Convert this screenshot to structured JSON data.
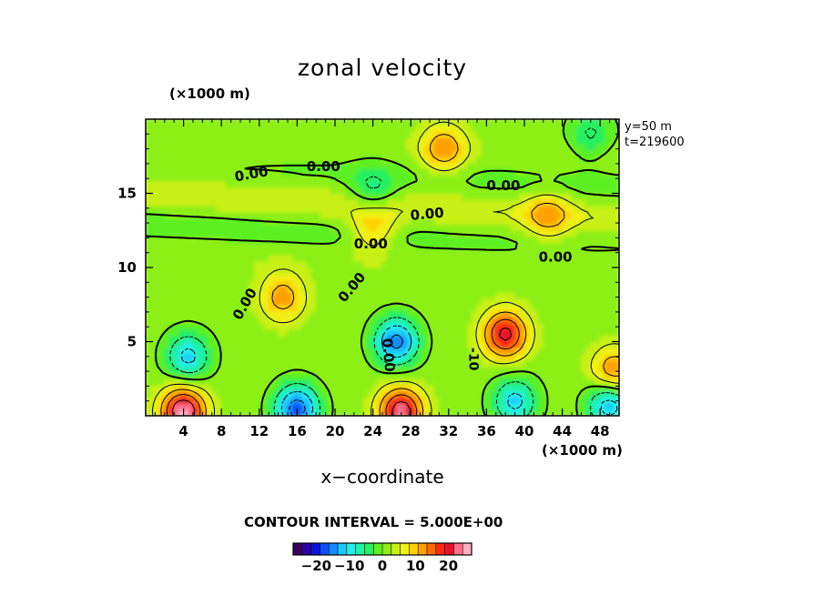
{
  "chart_data": {
    "type": "heatmap",
    "title": "zonal velocity",
    "xlabel": "x−coordinate",
    "x_scale_label": "(×1000 m)",
    "y_scale_label": "(×1000 m)",
    "info": [
      "y=50  m",
      "t=219600"
    ],
    "xlim": [
      0,
      50
    ],
    "ylim": [
      0,
      20
    ],
    "x_ticks": [
      4,
      8,
      12,
      16,
      20,
      24,
      28,
      32,
      36,
      40,
      44,
      48
    ],
    "x_tick_labels": [
      "4",
      "8",
      "12",
      "16",
      "20",
      "24",
      "28",
      "32",
      "36",
      "40",
      "44",
      "48"
    ],
    "y_ticks": [
      5,
      10,
      15
    ],
    "y_tick_labels": [
      "5",
      "10",
      "15"
    ],
    "contour_interval_text": "CONTOUR INTERVAL = 5.000E+00",
    "contour_label": "0.00",
    "contour_label_min": "-10",
    "colorbar": {
      "range": [
        -27,
        27
      ],
      "ticks": [
        -20,
        -10,
        0,
        10,
        20
      ],
      "tick_labels": [
        "−20",
        "−10",
        "0",
        "10",
        "20"
      ],
      "colors": [
        "#3a0060",
        "#2a00a0",
        "#0a14d8",
        "#0a50ff",
        "#148cff",
        "#1cc8ff",
        "#22f0e8",
        "#22f0a6",
        "#28f060",
        "#5cf020",
        "#8cf014",
        "#c8f014",
        "#f0f014",
        "#ffd000",
        "#ffa000",
        "#ff6a00",
        "#ff2a10",
        "#e8142a",
        "#ff6e8a",
        "#ffb0c0"
      ]
    },
    "features": [
      {
        "x": 26.5,
        "y": 5.0,
        "value": -18
      },
      {
        "x": 4.5,
        "y": 4.0,
        "value": -13
      },
      {
        "x": 38.0,
        "y": 5.5,
        "value": 20
      },
      {
        "x": 14.5,
        "y": 8.0,
        "value": 11
      },
      {
        "x": 4.0,
        "y": 0.3,
        "value": 24
      },
      {
        "x": 27.0,
        "y": 0.3,
        "value": 22
      },
      {
        "x": 16.0,
        "y": 0.5,
        "value": -19
      },
      {
        "x": 39.0,
        "y": 1.0,
        "value": -13
      },
      {
        "x": 49.0,
        "y": 0.8,
        "value": -15
      },
      {
        "x": 49.5,
        "y": 3.0,
        "value": 13
      },
      {
        "x": 31.5,
        "y": 18.0,
        "value": 12
      },
      {
        "x": 47.0,
        "y": 19.0,
        "value": -7
      },
      {
        "x": 24.0,
        "y": 12.8,
        "value": 10
      },
      {
        "x": 24.0,
        "y": 15.0,
        "value": -8
      },
      {
        "x": 42.5,
        "y": 13.5,
        "value": 9
      }
    ]
  }
}
